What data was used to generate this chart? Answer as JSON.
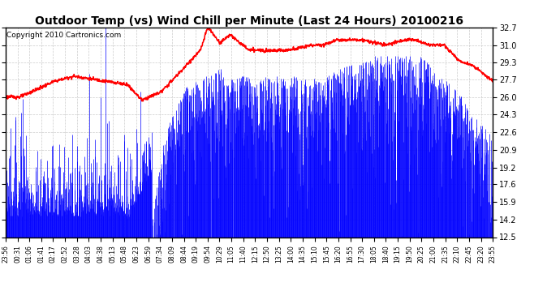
{
  "title": "Outdoor Temp (vs) Wind Chill per Minute (Last 24 Hours) 20100216",
  "copyright": "Copyright 2010 Cartronics.com",
  "yticks": [
    12.5,
    14.2,
    15.9,
    17.6,
    19.2,
    20.9,
    22.6,
    24.3,
    26.0,
    27.7,
    29.3,
    31.0,
    32.7
  ],
  "ymin": 12.5,
  "ymax": 32.7,
  "xtick_labels": [
    "23:56",
    "00:31",
    "01:06",
    "01:41",
    "02:17",
    "02:52",
    "03:28",
    "04:03",
    "04:38",
    "05:13",
    "05:48",
    "06:23",
    "06:59",
    "07:34",
    "08:09",
    "08:44",
    "09:19",
    "09:54",
    "10:29",
    "11:05",
    "11:40",
    "12:15",
    "12:50",
    "13:25",
    "14:00",
    "14:35",
    "15:10",
    "15:45",
    "16:20",
    "16:55",
    "17:30",
    "18:05",
    "18:40",
    "19:15",
    "19:50",
    "20:25",
    "21:00",
    "21:35",
    "22:10",
    "22:45",
    "23:20",
    "23:55"
  ],
  "bg_color": "#ffffff",
  "plot_bg_color": "#ffffff",
  "grid_color": "#cccccc",
  "red_line_color": "#ff0000",
  "blue_color": "#0000ff",
  "title_fontsize": 10,
  "copyright_fontsize": 6.5
}
